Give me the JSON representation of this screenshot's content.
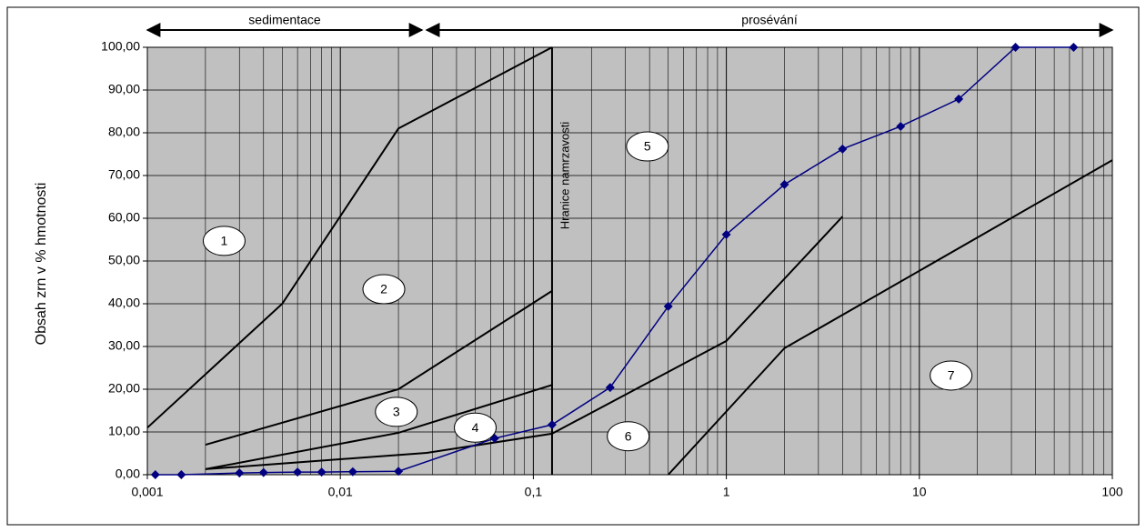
{
  "chart_data": {
    "type": "line",
    "y_label": "Obsah zrn v % hmotnosti",
    "log_x": true,
    "grid": true,
    "minor_grid": true,
    "background": "#c0c0c0",
    "xlim": [
      0.001,
      100
    ],
    "ylim": [
      0,
      100
    ],
    "xticks": [
      {
        "value": 0.001,
        "label": "0,001"
      },
      {
        "value": 0.01,
        "label": "0,01"
      },
      {
        "value": 0.1,
        "label": "0,1"
      },
      1,
      10,
      100
    ],
    "yticks": [
      {
        "value": 0,
        "label": "0,00"
      },
      {
        "value": 10,
        "label": "10,00"
      },
      {
        "value": 20,
        "label": "20,00"
      },
      {
        "value": 30,
        "label": "30,00"
      },
      {
        "value": 40,
        "label": "40,00"
      },
      {
        "value": 50,
        "label": "50,00"
      },
      {
        "value": 60,
        "label": "60,00"
      },
      {
        "value": 70,
        "label": "70,00"
      },
      {
        "value": 80,
        "label": "80,00"
      },
      {
        "value": 90,
        "label": "90,00"
      },
      {
        "value": 100,
        "label": "100,00"
      }
    ],
    "regions": [
      {
        "label": "sedimentace",
        "from": 0.001,
        "to": 0.0265
      },
      {
        "label": "prosévání",
        "from": 0.028,
        "to": 100
      }
    ],
    "series": [
      {
        "color": "#000080",
        "x": [
          0.0011,
          0.0015,
          0.003,
          0.004,
          0.006,
          0.008,
          0.0116,
          0.02,
          0.063,
          0.125,
          0.25,
          0.5,
          1,
          2,
          4,
          8,
          16,
          31.5,
          63
        ],
        "values": [
          0,
          0,
          0.4,
          0.5,
          0.6,
          0.6,
          0.7,
          0.8,
          8.5,
          11.7,
          20.4,
          39.4,
          56.2,
          67.9,
          76.2,
          81.5,
          87.9,
          100,
          100
        ]
      }
    ],
    "boundaries": [
      {
        "x": [
          0.001,
          0.005,
          0.02,
          0.125
        ],
        "y": [
          11,
          40,
          81,
          100
        ]
      },
      {
        "x": [
          0.002,
          0.02,
          0.125
        ],
        "y": [
          7,
          20,
          43
        ]
      },
      {
        "x": [
          0.002,
          0.02,
          0.125
        ],
        "y": [
          1.3,
          9.8,
          21
        ]
      },
      {
        "x": [
          0.002,
          0.028,
          0.125
        ],
        "y": [
          1.3,
          5.1,
          9.6
        ]
      },
      {
        "x": [
          0.125,
          1,
          4
        ],
        "y": [
          9.6,
          31.3,
          60.4
        ]
      },
      {
        "x": [
          0.5,
          2,
          100
        ],
        "y": [
          0,
          29.6,
          73.6
        ]
      },
      {
        "x": [
          0.125,
          0.125
        ],
        "y": [
          0,
          100
        ]
      }
    ],
    "boundary_label": {
      "text": "Hranice namrzavosti",
      "x": 0.147,
      "y": 70
    },
    "zones": [
      {
        "label": "1",
        "x": 0.0025,
        "y": 54.7
      },
      {
        "label": "2",
        "x": 0.0168,
        "y": 43.4
      },
      {
        "label": "3",
        "x": 0.0195,
        "y": 14.7
      },
      {
        "label": "4",
        "x": 0.05,
        "y": 11
      },
      {
        "label": "5",
        "x": 0.39,
        "y": 76.8
      },
      {
        "label": "6",
        "x": 0.31,
        "y": 9
      },
      {
        "label": "7",
        "x": 14.6,
        "y": 23.2
      }
    ]
  }
}
